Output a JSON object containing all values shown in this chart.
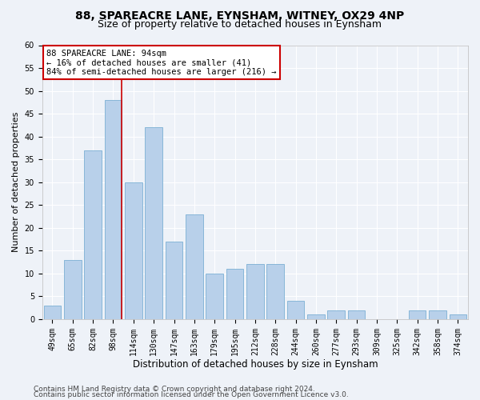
{
  "title": "88, SPAREACRE LANE, EYNSHAM, WITNEY, OX29 4NP",
  "subtitle": "Size of property relative to detached houses in Eynsham",
  "xlabel": "Distribution of detached houses by size in Eynsham",
  "ylabel": "Number of detached properties",
  "categories": [
    "49sqm",
    "65sqm",
    "82sqm",
    "98sqm",
    "114sqm",
    "130sqm",
    "147sqm",
    "163sqm",
    "179sqm",
    "195sqm",
    "212sqm",
    "228sqm",
    "244sqm",
    "260sqm",
    "277sqm",
    "293sqm",
    "309sqm",
    "325sqm",
    "342sqm",
    "358sqm",
    "374sqm"
  ],
  "values": [
    3,
    13,
    37,
    48,
    30,
    42,
    17,
    23,
    10,
    11,
    12,
    12,
    4,
    1,
    2,
    2,
    0,
    0,
    2,
    2,
    1
  ],
  "bar_color": "#b8d0ea",
  "bar_edge_color": "#7bafd4",
  "background_color": "#eef2f8",
  "grid_color": "#ffffff",
  "red_line_index": 3,
  "annotation_title": "88 SPAREACRE LANE: 94sqm",
  "annotation_line1": "← 16% of detached houses are smaller (41)",
  "annotation_line2": "84% of semi-detached houses are larger (216) →",
  "annotation_box_color": "#ffffff",
  "annotation_box_edge": "#cc0000",
  "red_line_color": "#cc0000",
  "ylim": [
    0,
    60
  ],
  "yticks": [
    0,
    5,
    10,
    15,
    20,
    25,
    30,
    35,
    40,
    45,
    50,
    55,
    60
  ],
  "footer1": "Contains HM Land Registry data © Crown copyright and database right 2024.",
  "footer2": "Contains public sector information licensed under the Open Government Licence v3.0.",
  "title_fontsize": 10,
  "subtitle_fontsize": 9,
  "xlabel_fontsize": 8.5,
  "ylabel_fontsize": 8,
  "tick_fontsize": 7,
  "annotation_fontsize": 7.5,
  "footer_fontsize": 6.5
}
